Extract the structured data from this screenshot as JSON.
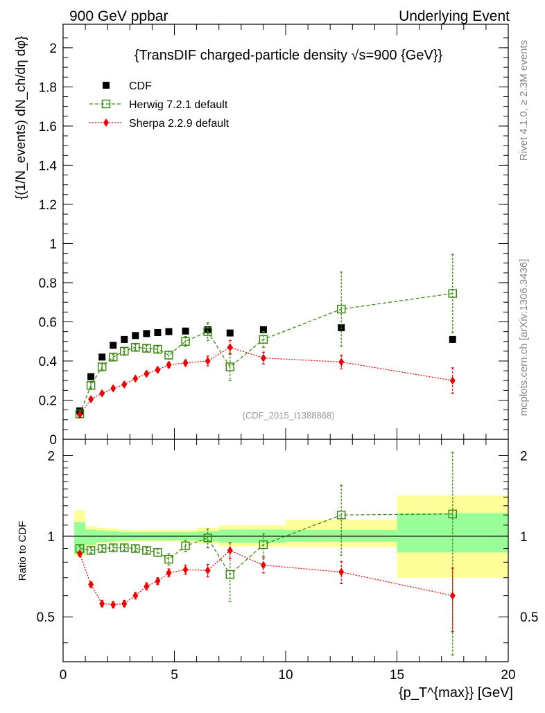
{
  "header": {
    "left": "900 GeV ppbar",
    "right": "Underlying Event"
  },
  "side_labels": {
    "rivet": "Rivet 4.1.0, ≥ 2.3M events",
    "mcplots": "mcplots.cern.ch [arXiv:1306.3436]"
  },
  "chart_data": [
    {
      "type": "scatter",
      "title": "{TransDIF charged-particle density √s=900 {GeV}}",
      "watermark": "(CDF_2015_I1388868)",
      "ylabel": "{(1/N_events) dN_ch/dη dφ}",
      "xlabel": "{p_T^{max}} [GeV]",
      "xlim": [
        0,
        20
      ],
      "ylim": [
        0,
        2.12
      ],
      "yticks": [
        0,
        0.2,
        0.4,
        0.6,
        0.8,
        1,
        1.2,
        1.4,
        1.6,
        1.8,
        2
      ],
      "ytick_labels": [
        "0",
        "0.2",
        "0.4",
        "0.6",
        "0.8",
        "1",
        "1.2",
        "1.4",
        "1.6",
        "1.8",
        "2"
      ],
      "legend": [
        "CDF",
        "Herwig 7.2.1 default",
        "Sherpa 2.2.9 default"
      ],
      "legend_position": "top-left",
      "series": [
        {
          "name": "CDF",
          "color": "#000000",
          "marker": "filled-square",
          "x": [
            0.75,
            1.25,
            1.75,
            2.25,
            2.75,
            3.25,
            3.75,
            4.25,
            4.75,
            5.5,
            6.5,
            7.5,
            9.0,
            12.5,
            17.5
          ],
          "y": [
            0.145,
            0.32,
            0.42,
            0.48,
            0.51,
            0.53,
            0.54,
            0.545,
            0.55,
            0.553,
            0.56,
            0.543,
            0.56,
            0.57,
            0.51
          ]
        },
        {
          "name": "Herwig 7.2.1 default",
          "color": "#3a8a12",
          "marker": "open-square",
          "line": "dashed",
          "x": [
            0.75,
            1.25,
            1.75,
            2.25,
            2.75,
            3.25,
            3.75,
            4.25,
            4.75,
            5.5,
            6.5,
            7.5,
            9.0,
            12.5,
            17.5
          ],
          "y": [
            0.13,
            0.275,
            0.37,
            0.42,
            0.45,
            0.47,
            0.465,
            0.46,
            0.43,
            0.5,
            0.55,
            0.37,
            0.51,
            0.665,
            0.745
          ],
          "yerr": [
            0.01,
            0.015,
            0.015,
            0.015,
            0.015,
            0.015,
            0.015,
            0.015,
            0.02,
            0.025,
            0.045,
            0.07,
            0.04,
            0.19,
            0.2
          ]
        },
        {
          "name": "Sherpa 2.2.9 default",
          "color": "#ee0000",
          "marker": "filled-diamond",
          "line": "dotted",
          "x": [
            0.75,
            1.25,
            1.75,
            2.25,
            2.75,
            3.25,
            3.75,
            4.25,
            4.75,
            5.5,
            6.5,
            7.5,
            9.0,
            12.5,
            17.5
          ],
          "y": [
            0.125,
            0.205,
            0.235,
            0.26,
            0.28,
            0.31,
            0.335,
            0.355,
            0.38,
            0.39,
            0.4,
            0.47,
            0.415,
            0.395,
            0.3
          ],
          "yerr": [
            0.008,
            0.01,
            0.01,
            0.01,
            0.01,
            0.01,
            0.012,
            0.012,
            0.015,
            0.015,
            0.025,
            0.035,
            0.03,
            0.035,
            0.065
          ]
        }
      ]
    },
    {
      "type": "scatter",
      "ylabel": "Ratio to CDF",
      "xlim": [
        0,
        20
      ],
      "ylim": [
        0.34,
        2.3
      ],
      "yscale": "log",
      "xticks": [
        0,
        5,
        10,
        15,
        20
      ],
      "xtick_labels": [
        "0",
        "5",
        "10",
        "15",
        "20"
      ],
      "yticks": [
        0.5,
        1,
        2
      ],
      "ytick_labels": [
        "0.5",
        "1",
        "2"
      ],
      "reference_line": 1,
      "uncertainty_bands": {
        "x_edges": [
          0.5,
          1,
          1.5,
          2,
          2.5,
          3,
          3.5,
          4,
          4.5,
          5,
          6,
          7,
          8,
          10,
          15,
          20
        ],
        "inner_low": [
          0.86,
          0.93,
          0.95,
          0.955,
          0.96,
          0.965,
          0.965,
          0.965,
          0.965,
          0.965,
          0.955,
          0.945,
          0.945,
          0.955,
          0.87
        ],
        "inner_high": [
          1.13,
          1.06,
          1.05,
          1.045,
          1.04,
          1.035,
          1.035,
          1.035,
          1.035,
          1.035,
          1.045,
          1.06,
          1.06,
          1.055,
          1.22
        ],
        "outer_low": [
          0.84,
          0.92,
          0.94,
          0.945,
          0.95,
          0.955,
          0.955,
          0.955,
          0.955,
          0.955,
          0.935,
          0.915,
          0.915,
          0.91,
          0.7
        ],
        "outer_high": [
          1.25,
          1.09,
          1.075,
          1.07,
          1.06,
          1.055,
          1.055,
          1.055,
          1.055,
          1.055,
          1.075,
          1.1,
          1.1,
          1.15,
          1.42
        ],
        "inner_color": "#99ff99",
        "outer_color": "#ffff99"
      },
      "series": [
        {
          "name": "Herwig 7.2.1 default",
          "color": "#3a8a12",
          "marker": "open-square",
          "line": "dashed",
          "x": [
            0.75,
            1.25,
            1.75,
            2.25,
            2.75,
            3.25,
            3.75,
            4.25,
            4.75,
            5.5,
            6.5,
            7.5,
            9.0,
            12.5,
            17.5
          ],
          "y": [
            0.9,
            0.885,
            0.9,
            0.905,
            0.905,
            0.9,
            0.885,
            0.87,
            0.82,
            0.92,
            0.985,
            0.72,
            0.93,
            1.2,
            1.21
          ],
          "yerr": [
            0.02,
            0.02,
            0.02,
            0.02,
            0.02,
            0.02,
            0.02,
            0.03,
            0.04,
            0.045,
            0.08,
            0.15,
            0.09,
            0.35,
            0.85
          ]
        },
        {
          "name": "Sherpa 2.2.9 default",
          "color": "#ee0000",
          "marker": "filled-diamond",
          "line": "dotted",
          "x": [
            0.75,
            1.25,
            1.75,
            2.25,
            2.75,
            3.25,
            3.75,
            4.25,
            4.75,
            5.5,
            6.5,
            7.5,
            9.0,
            12.5,
            17.5
          ],
          "y": [
            0.86,
            0.66,
            0.56,
            0.555,
            0.56,
            0.6,
            0.65,
            0.68,
            0.73,
            0.75,
            0.745,
            0.885,
            0.78,
            0.735,
            0.6
          ],
          "yerr": [
            0.015,
            0.015,
            0.015,
            0.015,
            0.015,
            0.015,
            0.02,
            0.02,
            0.025,
            0.03,
            0.04,
            0.06,
            0.05,
            0.07,
            0.16
          ]
        }
      ]
    }
  ]
}
